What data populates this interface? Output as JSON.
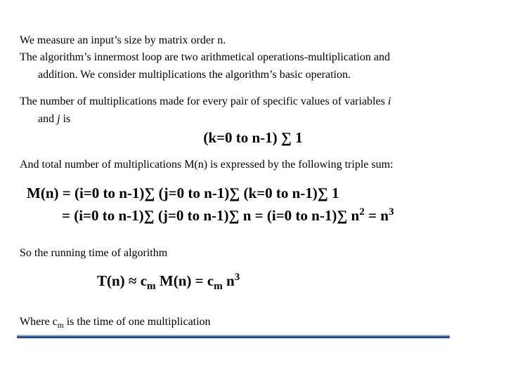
{
  "colors": {
    "text": "#000000",
    "background": "#ffffff",
    "rule_light": "#a0b0c8",
    "rule_dark": "#2a4f87"
  },
  "typography": {
    "body_family": "Times New Roman",
    "body_size_pt": 16,
    "equation_size_pt": 21,
    "equation_weight": "bold"
  },
  "p1_l1": "We measure an input’s size by matrix order n.",
  "p1_l2": "The algorithm’s innermost loop are two arithmetical operations-multiplication and",
  "p1_l3": "addition. We consider multiplications the algorithm’s basic operation.",
  "p2_l1_a": "The number of multiplications made for every pair of specific values of variables ",
  "p2_l1_i": "i",
  "p2_l2_a": "and ",
  "p2_l2_j": "j",
  "p2_l2_b": " is",
  "eq1": "(k=0 to n-1) ∑ 1",
  "p3": "And total number of multiplications M(n) is expressed by the following triple sum:",
  "eq2_l1": "M(n) = (i=0 to n-1)∑ (j=0 to n-1)∑ (k=0 to n-1)∑ 1",
  "eq2_l2_a": "= (i=0 to n-1)∑ (j=0 to n-1)∑ n = (i=0 to n-1)∑ n",
  "eq2_l2_sup2": "2",
  "eq2_l2_b": " = n",
  "eq2_l2_sup3": "3",
  "p4": "So the running time of algorithm",
  "eq3_a": "T(n) ≈ c",
  "eq3_sub1": "m",
  "eq3_b": " M(n) = c",
  "eq3_sub2": "m",
  "eq3_c": " n",
  "eq3_sup": "3",
  "p5_a": "Where c",
  "p5_sub": "m",
  "p5_b": " is the time of one multiplication"
}
